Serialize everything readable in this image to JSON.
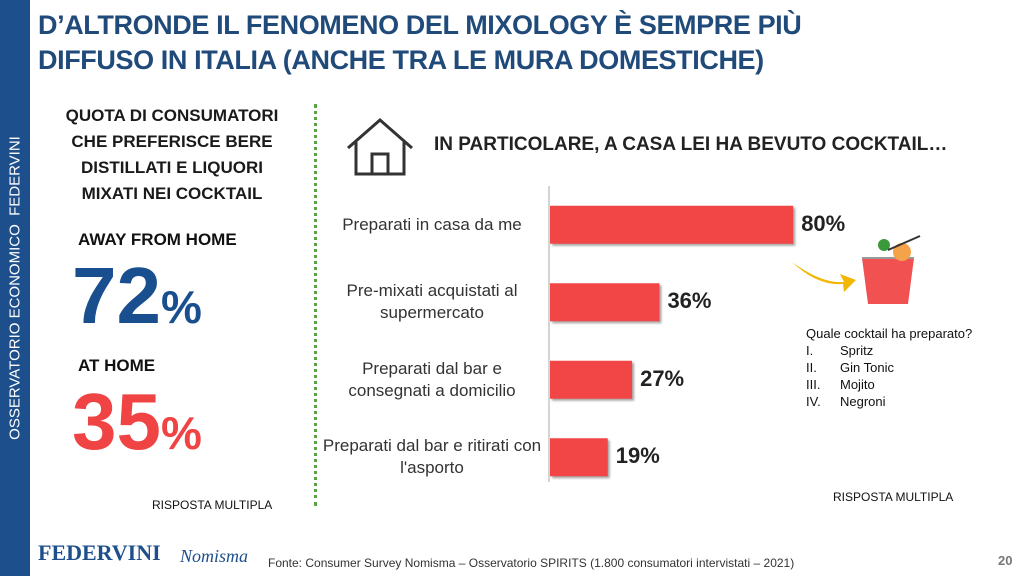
{
  "sidebar": "OSSERVATORIO ECONOMICO  FEDERVINI",
  "title": [
    "D’ALTRONDE IL FENOMENO DEL MIXOLOGY È SEMPRE PIÙ",
    "DIFFUSO IN ITALIA (ANCHE TRA LE MURA DOMESTICHE)"
  ],
  "left": {
    "heading": [
      "QUOTA DI CONSUMATORI",
      "CHE PREFERISCE BERE",
      "DISTILLATI E LIQUORI",
      "MIXATI NEI COCKTAIL"
    ],
    "stats": [
      {
        "label": "AWAY FROM HOME",
        "number": "72",
        "unit": "%",
        "color": "#1a4f8f"
      },
      {
        "label": "AT HOME",
        "number": "35",
        "unit": "%",
        "color": "#f04444"
      }
    ],
    "note": "RISPOSTA MULTIPLA"
  },
  "chart_data": {
    "type": "bar",
    "orientation": "horizontal",
    "title": "IN PARTICOLARE, A CASA LEI HA BEVUTO COCKTAIL…",
    "categories": [
      "Preparati in casa da me",
      "Pre-mixati acquistati al supermercato",
      "Preparati dal bar e consegnati a domicilio",
      "Preparati dal bar e ritirati con l'asporto"
    ],
    "values": [
      80,
      36,
      27,
      19
    ],
    "value_labels": [
      "80%",
      "36%",
      "27%",
      "19%"
    ],
    "color": "#f24545",
    "note": "RISPOSTA MULTIPLA"
  },
  "cocktail_box": {
    "question": "Quale cocktail  ha preparato?",
    "items": [
      {
        "numeral": "I.",
        "name": "Spritz"
      },
      {
        "numeral": "II.",
        "name": "Gin Tonic"
      },
      {
        "numeral": "III.",
        "name": "Mojito"
      },
      {
        "numeral": "IV.",
        "name": "Negroni"
      }
    ]
  },
  "footer": {
    "logo1": "FEDERVINI",
    "logo2": "Nomisma",
    "source": "Fonte: Consumer Survey Nomisma – Osservatorio SPIRITS (1.800 consumatori intervistati – 2021)",
    "page": "20"
  }
}
